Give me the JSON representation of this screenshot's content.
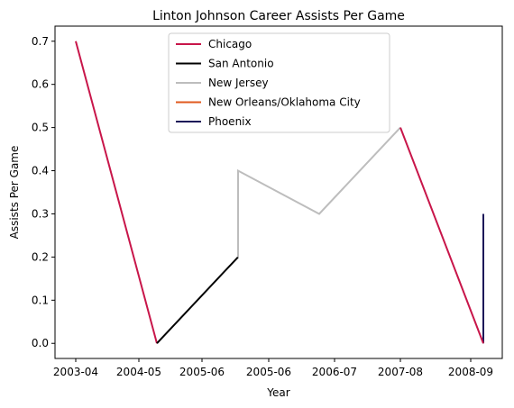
{
  "chart_data": {
    "type": "line",
    "title": "Linton Johnson Career Assists Per Game",
    "xlabel": "Year",
    "ylabel": "Assists Per Game",
    "x_tick_labels": [
      "2003-04",
      "2004-05",
      "2005-06",
      "2005-06",
      "2006-07",
      "2007-08",
      "2008-09"
    ],
    "y_tick_labels": [
      "0.0",
      "0.1",
      "0.2",
      "0.3",
      "0.4",
      "0.5",
      "0.6",
      "0.7"
    ],
    "ylim": [
      -0.035,
      0.735
    ],
    "y_ticks": [
      0.0,
      0.1,
      0.2,
      0.3,
      0.4,
      0.5,
      0.6,
      0.7
    ],
    "grid": false,
    "legend_position": "top-center",
    "series": [
      {
        "name": "Chicago",
        "color": "#c8164a",
        "points": [
          [
            0,
            0.7
          ],
          [
            1,
            0.0
          ]
        ]
      },
      {
        "name": "San Antonio",
        "color": "#000000",
        "points": [
          [
            1,
            0.0
          ],
          [
            2,
            0.2
          ]
        ]
      },
      {
        "name": "New Jersey",
        "color": "#bdbdbd",
        "points": [
          [
            2,
            0.2
          ],
          [
            2,
            0.4
          ],
          [
            4,
            0.3
          ],
          [
            5,
            0.5
          ]
        ]
      },
      {
        "name": "New Orleans/Oklahoma City",
        "color": "#e05a1e",
        "points": [
          [
            6,
            0.0
          ],
          [
            6,
            0.0
          ]
        ]
      },
      {
        "name": "Phoenix",
        "color": "#1c1559",
        "points": [
          [
            6,
            0.0
          ],
          [
            6,
            0.3
          ]
        ]
      },
      {
        "name": "Chicago",
        "color": "#c8164a",
        "points": [
          [
            5,
            0.5
          ],
          [
            6,
            0.0
          ]
        ],
        "hide_in_legend": true
      }
    ]
  }
}
